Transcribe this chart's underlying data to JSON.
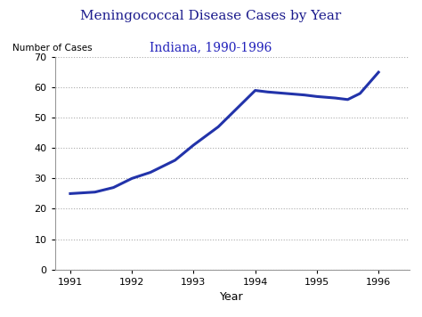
{
  "title": "Meningococcal Disease Cases by Year",
  "subtitle": "Indiana, 1990-1996",
  "title_color": "#1a1a8c",
  "subtitle_color": "#2222bb",
  "xlabel": "Year",
  "ylabel": "Number of Cases",
  "x": [
    1991,
    1991.4,
    1991.7,
    1992,
    1992.3,
    1992.7,
    1993,
    1993.4,
    1993.7,
    1994,
    1994.2,
    1994.5,
    1994.8,
    1995,
    1995.3,
    1995.5,
    1995.7,
    1996
  ],
  "y": [
    25,
    25.5,
    27,
    30,
    32,
    36,
    41,
    47,
    53,
    59,
    58.5,
    58,
    57.5,
    57,
    56.5,
    56,
    58,
    65
  ],
  "line_color": "#2233aa",
  "line_width": 2.2,
  "ylim": [
    0,
    70
  ],
  "xlim": [
    1990.75,
    1996.5
  ],
  "yticks": [
    0,
    10,
    20,
    30,
    40,
    50,
    60,
    70
  ],
  "xticks": [
    1991,
    1992,
    1993,
    1994,
    1995,
    1996
  ],
  "grid_color": "#aaaaaa",
  "grid_style": "dotted",
  "background_color": "#ffffff",
  "title_fontsize": 11,
  "subtitle_fontsize": 10,
  "ylabel_fontsize": 7.5,
  "xlabel_fontsize": 9,
  "tick_fontsize": 8
}
